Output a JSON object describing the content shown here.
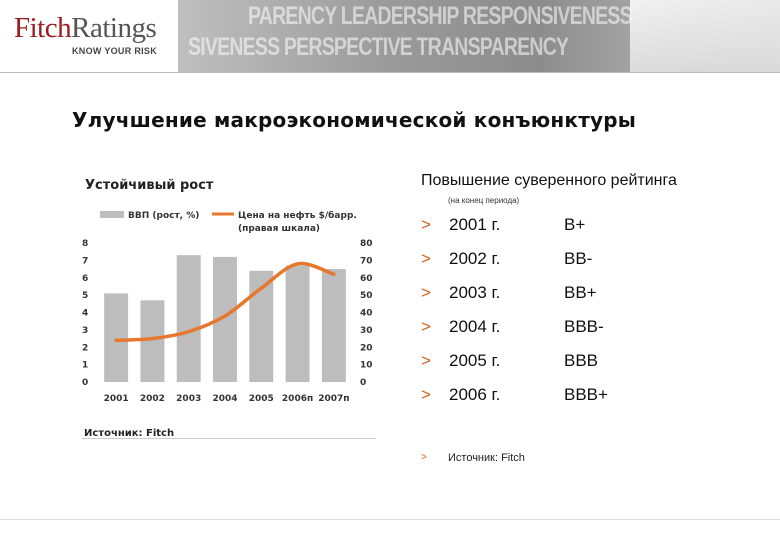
{
  "header": {
    "logo_fitch": "Fitch",
    "logo_ratings": "Ratings",
    "tagline": "KNOW YOUR RISK",
    "banner_line1": "PARENCY LEADERSHIP RESPONSIVENESS",
    "banner_line2": "SIVENESS PERSPECTIVE TRANSPARENCY"
  },
  "slide_title": "Улучшение макроэкономической конъюнктуры",
  "left_panel": {
    "title": "Устойчивый рост",
    "source": "Источник: Fitch"
  },
  "chart_data": {
    "type": "bar",
    "title": "Устойчивый рост",
    "categories": [
      "2001",
      "2002",
      "2003",
      "2004",
      "2005",
      "2006п",
      "2007п"
    ],
    "series": [
      {
        "name": "ВВП (рост, %)",
        "kind": "bar",
        "axis": "left",
        "values": [
          5.1,
          4.7,
          7.3,
          7.2,
          6.4,
          6.7,
          6.5
        ],
        "color": "#bdbdbd"
      },
      {
        "name": "Цена на нефть $/барр. (правая шкала)",
        "kind": "line",
        "axis": "right",
        "values": [
          24,
          25,
          29,
          38,
          54,
          68,
          62
        ],
        "color": "#e8772e"
      }
    ],
    "left_axis": {
      "min": 0,
      "max": 8,
      "ticks": [
        "0",
        "1",
        "2",
        "3",
        "4",
        "5",
        "6",
        "7",
        "8"
      ]
    },
    "right_axis": {
      "min": 0,
      "max": 80,
      "ticks": [
        "0",
        "10",
        "20",
        "30",
        "40",
        "50",
        "60",
        "70",
        "80"
      ]
    },
    "legend": {
      "bar_label": "ВВП (рост, %)",
      "line_label_1": "Цена на нефть $/барр.",
      "line_label_2": "(правая шкала)"
    },
    "grid": false
  },
  "right_panel": {
    "title": "Повышение суверенного рейтинга",
    "subtitle": "(на конец периода)",
    "ratings": [
      {
        "arrow": ">",
        "year": "2001 г.",
        "grade": "B+"
      },
      {
        "arrow": ">",
        "year": "2002 г.",
        "grade": "BB-"
      },
      {
        "arrow": ">",
        "year": "2003 г.",
        "grade": "BB+"
      },
      {
        "arrow": ">",
        "year": "2004 г.",
        "grade": "BBB-"
      },
      {
        "arrow": ">",
        "year": "2005 г.",
        "grade": "BBB"
      },
      {
        "arrow": ">",
        "year": "2006 г.",
        "grade": "BBB+"
      }
    ],
    "source_arrow": ">",
    "source": "Источник: Fitch"
  },
  "colors": {
    "accent": "#e8772e",
    "bar": "#bdbdbd",
    "logo": "#9a1d20"
  }
}
